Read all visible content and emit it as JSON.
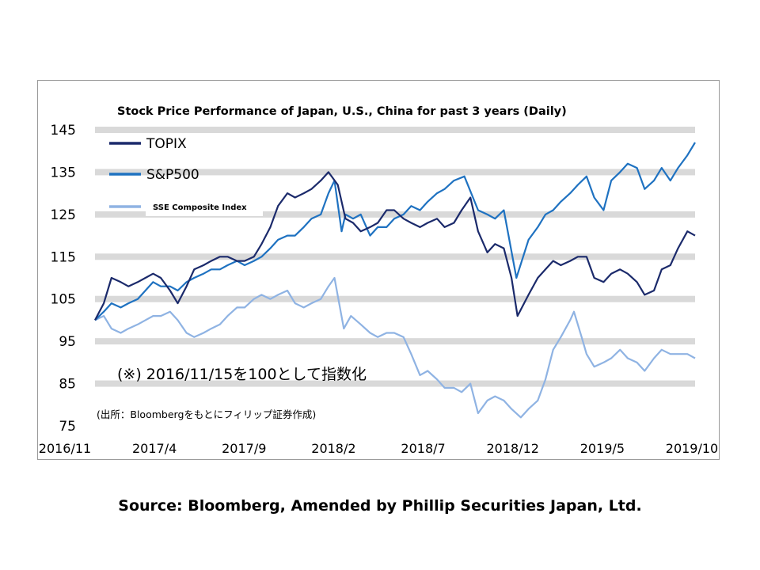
{
  "chart_data": {
    "type": "line",
    "title": "Stock Price Performance of Japan, U.S., China for past 3 years (Daily)",
    "x_ticks": [
      "2016/11",
      "2017/4",
      "2017/9",
      "2018/2",
      "2018/7",
      "2018/12",
      "2019/5",
      "2019/10"
    ],
    "y_ticks": [
      75,
      85,
      95,
      105,
      115,
      125,
      135,
      145
    ],
    "ylim": [
      75,
      145
    ],
    "xlim": [
      "2016-11-15",
      "2019-11-15"
    ],
    "grid": "horizontal bands",
    "legend_position": "top-left",
    "annotation": "(※) 2016/11/15を100として指数化",
    "source_inner": "(出所：Bloombergをもとにフィリップ証券作成)",
    "series": [
      {
        "name": "TOPIX",
        "color": "#1b2a6b",
        "points": [
          [
            "2016-11-15",
            100
          ],
          [
            "2016-12-01",
            104
          ],
          [
            "2016-12-15",
            110
          ],
          [
            "2017-01-01",
            109
          ],
          [
            "2017-01-15",
            108
          ],
          [
            "2017-02-01",
            109
          ],
          [
            "2017-02-15",
            110
          ],
          [
            "2017-03-01",
            111
          ],
          [
            "2017-03-15",
            110
          ],
          [
            "2017-04-01",
            107
          ],
          [
            "2017-04-15",
            104
          ],
          [
            "2017-05-01",
            108
          ],
          [
            "2017-05-15",
            112
          ],
          [
            "2017-06-01",
            113
          ],
          [
            "2017-06-15",
            114
          ],
          [
            "2017-07-01",
            115
          ],
          [
            "2017-07-15",
            115
          ],
          [
            "2017-08-01",
            114
          ],
          [
            "2017-08-15",
            114
          ],
          [
            "2017-09-01",
            115
          ],
          [
            "2017-09-15",
            118
          ],
          [
            "2017-10-01",
            122
          ],
          [
            "2017-10-15",
            127
          ],
          [
            "2017-11-01",
            130
          ],
          [
            "2017-11-15",
            129
          ],
          [
            "2017-12-01",
            130
          ],
          [
            "2017-12-15",
            131
          ],
          [
            "2018-01-01",
            133
          ],
          [
            "2018-01-15",
            135
          ],
          [
            "2018-02-01",
            132
          ],
          [
            "2018-02-15",
            124
          ],
          [
            "2018-03-01",
            123
          ],
          [
            "2018-03-15",
            121
          ],
          [
            "2018-04-01",
            122
          ],
          [
            "2018-04-15",
            123
          ],
          [
            "2018-05-01",
            126
          ],
          [
            "2018-05-15",
            126
          ],
          [
            "2018-06-01",
            124
          ],
          [
            "2018-06-15",
            123
          ],
          [
            "2018-07-01",
            122
          ],
          [
            "2018-07-15",
            123
          ],
          [
            "2018-08-01",
            124
          ],
          [
            "2018-08-15",
            122
          ],
          [
            "2018-09-01",
            123
          ],
          [
            "2018-09-15",
            126
          ],
          [
            "2018-10-01",
            129
          ],
          [
            "2018-10-15",
            121
          ],
          [
            "2018-11-01",
            116
          ],
          [
            "2018-11-15",
            118
          ],
          [
            "2018-12-01",
            117
          ],
          [
            "2018-12-15",
            110
          ],
          [
            "2018-12-26",
            101
          ],
          [
            "2019-01-15",
            106
          ],
          [
            "2019-02-01",
            110
          ],
          [
            "2019-02-15",
            112
          ],
          [
            "2019-03-01",
            114
          ],
          [
            "2019-03-15",
            113
          ],
          [
            "2019-04-01",
            114
          ],
          [
            "2019-04-15",
            115
          ],
          [
            "2019-05-01",
            115
          ],
          [
            "2019-05-15",
            110
          ],
          [
            "2019-06-01",
            109
          ],
          [
            "2019-06-15",
            111
          ],
          [
            "2019-07-01",
            112
          ],
          [
            "2019-07-15",
            111
          ],
          [
            "2019-08-01",
            109
          ],
          [
            "2019-08-15",
            106
          ],
          [
            "2019-09-01",
            107
          ],
          [
            "2019-09-15",
            112
          ],
          [
            "2019-10-01",
            113
          ],
          [
            "2019-10-15",
            117
          ],
          [
            "2019-11-01",
            121
          ],
          [
            "2019-11-15",
            120
          ]
        ]
      },
      {
        "name": "S&P500",
        "color": "#1f72c1",
        "points": [
          [
            "2016-11-15",
            100
          ],
          [
            "2016-12-01",
            102
          ],
          [
            "2016-12-15",
            104
          ],
          [
            "2017-01-01",
            103
          ],
          [
            "2017-01-15",
            104
          ],
          [
            "2017-02-01",
            105
          ],
          [
            "2017-02-15",
            107
          ],
          [
            "2017-03-01",
            109
          ],
          [
            "2017-03-15",
            108
          ],
          [
            "2017-04-01",
            108
          ],
          [
            "2017-04-15",
            107
          ],
          [
            "2017-05-01",
            109
          ],
          [
            "2017-05-15",
            110
          ],
          [
            "2017-06-01",
            111
          ],
          [
            "2017-06-15",
            112
          ],
          [
            "2017-07-01",
            112
          ],
          [
            "2017-07-15",
            113
          ],
          [
            "2017-08-01",
            114
          ],
          [
            "2017-08-15",
            113
          ],
          [
            "2017-09-01",
            114
          ],
          [
            "2017-09-15",
            115
          ],
          [
            "2017-10-01",
            117
          ],
          [
            "2017-10-15",
            119
          ],
          [
            "2017-11-01",
            120
          ],
          [
            "2017-11-15",
            120
          ],
          [
            "2017-12-01",
            122
          ],
          [
            "2017-12-15",
            124
          ],
          [
            "2018-01-01",
            125
          ],
          [
            "2018-01-15",
            130
          ],
          [
            "2018-01-26",
            133
          ],
          [
            "2018-02-08",
            121
          ],
          [
            "2018-02-15",
            125
          ],
          [
            "2018-03-01",
            124
          ],
          [
            "2018-03-15",
            125
          ],
          [
            "2018-04-01",
            120
          ],
          [
            "2018-04-15",
            122
          ],
          [
            "2018-05-01",
            122
          ],
          [
            "2018-05-15",
            124
          ],
          [
            "2018-06-01",
            125
          ],
          [
            "2018-06-15",
            127
          ],
          [
            "2018-07-01",
            126
          ],
          [
            "2018-07-15",
            128
          ],
          [
            "2018-08-01",
            130
          ],
          [
            "2018-08-15",
            131
          ],
          [
            "2018-09-01",
            133
          ],
          [
            "2018-09-20",
            134
          ],
          [
            "2018-10-15",
            126
          ],
          [
            "2018-11-01",
            125
          ],
          [
            "2018-11-15",
            124
          ],
          [
            "2018-12-01",
            126
          ],
          [
            "2018-12-24",
            110
          ],
          [
            "2019-01-15",
            119
          ],
          [
            "2019-02-01",
            122
          ],
          [
            "2019-02-15",
            125
          ],
          [
            "2019-03-01",
            126
          ],
          [
            "2019-03-15",
            128
          ],
          [
            "2019-04-01",
            130
          ],
          [
            "2019-04-15",
            132
          ],
          [
            "2019-05-01",
            134
          ],
          [
            "2019-05-15",
            129
          ],
          [
            "2019-06-01",
            126
          ],
          [
            "2019-06-15",
            133
          ],
          [
            "2019-07-01",
            135
          ],
          [
            "2019-07-15",
            137
          ],
          [
            "2019-08-01",
            136
          ],
          [
            "2019-08-15",
            131
          ],
          [
            "2019-09-01",
            133
          ],
          [
            "2019-09-15",
            136
          ],
          [
            "2019-10-01",
            133
          ],
          [
            "2019-10-15",
            136
          ],
          [
            "2019-11-01",
            139
          ],
          [
            "2019-11-15",
            142
          ]
        ]
      },
      {
        "name": "SSE Composite Index",
        "color": "#8fb3e3",
        "points": [
          [
            "2016-11-15",
            100
          ],
          [
            "2016-12-01",
            101
          ],
          [
            "2016-12-15",
            98
          ],
          [
            "2017-01-01",
            97
          ],
          [
            "2017-01-15",
            98
          ],
          [
            "2017-02-01",
            99
          ],
          [
            "2017-02-15",
            100
          ],
          [
            "2017-03-01",
            101
          ],
          [
            "2017-03-15",
            101
          ],
          [
            "2017-04-01",
            102
          ],
          [
            "2017-04-15",
            100
          ],
          [
            "2017-05-01",
            97
          ],
          [
            "2017-05-15",
            96
          ],
          [
            "2017-06-01",
            97
          ],
          [
            "2017-06-15",
            98
          ],
          [
            "2017-07-01",
            99
          ],
          [
            "2017-07-15",
            101
          ],
          [
            "2017-08-01",
            103
          ],
          [
            "2017-08-15",
            103
          ],
          [
            "2017-09-01",
            105
          ],
          [
            "2017-09-15",
            106
          ],
          [
            "2017-10-01",
            105
          ],
          [
            "2017-10-15",
            106
          ],
          [
            "2017-11-01",
            107
          ],
          [
            "2017-11-15",
            104
          ],
          [
            "2017-12-01",
            103
          ],
          [
            "2017-12-15",
            104
          ],
          [
            "2018-01-01",
            105
          ],
          [
            "2018-01-15",
            108
          ],
          [
            "2018-01-26",
            110
          ],
          [
            "2018-02-12",
            98
          ],
          [
            "2018-02-25",
            101
          ],
          [
            "2018-03-15",
            99
          ],
          [
            "2018-04-01",
            97
          ],
          [
            "2018-04-15",
            96
          ],
          [
            "2018-05-01",
            97
          ],
          [
            "2018-05-15",
            97
          ],
          [
            "2018-06-01",
            96
          ],
          [
            "2018-06-15",
            92
          ],
          [
            "2018-07-01",
            87
          ],
          [
            "2018-07-15",
            88
          ],
          [
            "2018-08-01",
            86
          ],
          [
            "2018-08-15",
            84
          ],
          [
            "2018-09-01",
            84
          ],
          [
            "2018-09-15",
            83
          ],
          [
            "2018-10-01",
            85
          ],
          [
            "2018-10-15",
            78
          ],
          [
            "2018-11-01",
            81
          ],
          [
            "2018-11-15",
            82
          ],
          [
            "2018-12-01",
            81
          ],
          [
            "2018-12-15",
            79
          ],
          [
            "2019-01-01",
            77
          ],
          [
            "2019-01-15",
            79
          ],
          [
            "2019-02-01",
            81
          ],
          [
            "2019-02-15",
            86
          ],
          [
            "2019-03-01",
            93
          ],
          [
            "2019-03-15",
            96
          ],
          [
            "2019-04-01",
            100
          ],
          [
            "2019-04-08",
            102
          ],
          [
            "2019-04-22",
            96
          ],
          [
            "2019-05-01",
            92
          ],
          [
            "2019-05-15",
            89
          ],
          [
            "2019-06-01",
            90
          ],
          [
            "2019-06-15",
            91
          ],
          [
            "2019-07-01",
            93
          ],
          [
            "2019-07-15",
            91
          ],
          [
            "2019-08-01",
            90
          ],
          [
            "2019-08-15",
            88
          ],
          [
            "2019-09-01",
            91
          ],
          [
            "2019-09-15",
            93
          ],
          [
            "2019-10-01",
            92
          ],
          [
            "2019-10-15",
            92
          ],
          [
            "2019-11-01",
            92
          ],
          [
            "2019-11-15",
            91
          ]
        ]
      }
    ]
  },
  "source_note": "Source: Bloomberg, Amended by Phillip Securities Japan, Ltd."
}
